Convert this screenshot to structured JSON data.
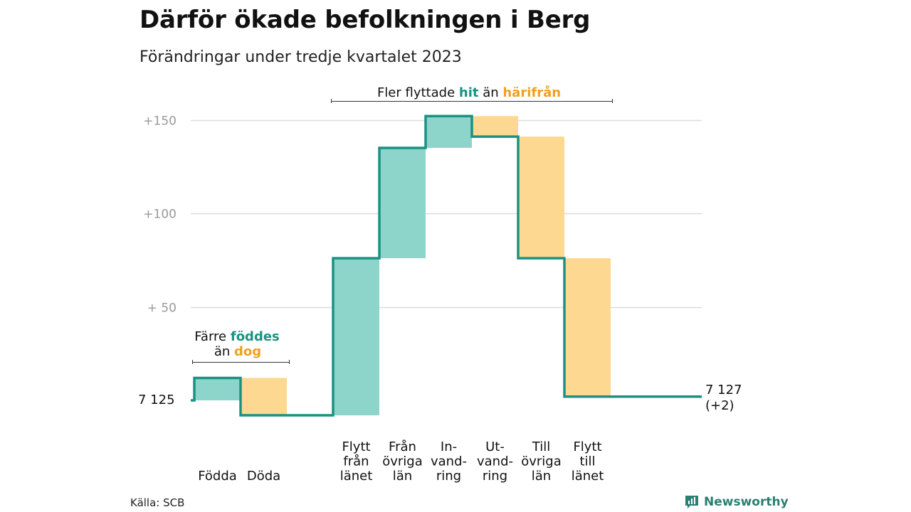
{
  "header": {
    "title": "Därför ökade befolkningen i Berg",
    "subtitle": "Förändringar under tredje kvartalet 2023"
  },
  "footer": {
    "source": "Källa: SCB",
    "brand": "Newsworthy"
  },
  "colors": {
    "increase": "#8dd5cb",
    "decrease": "#fcd891",
    "line": "#1a9282",
    "accent_teal": "#1a9282",
    "accent_orange": "#f0a020",
    "grid": "#dddddd"
  },
  "chart_data": {
    "type": "waterfall",
    "title": "Därför ökade befolkningen i Berg",
    "subtitle": "Förändringar under tredje kvartalet 2023",
    "start_value": 7125,
    "start_label": "7  125",
    "end_value": 7127,
    "end_label": "7 127",
    "end_change_label": "(+2)",
    "y_range_relative": [
      -8,
      155
    ],
    "y_ticks": [
      {
        "value": 50,
        "label": "+  50"
      },
      {
        "value": 100,
        "label": "+100"
      },
      {
        "value": 150,
        "label": "+150"
      }
    ],
    "grid": true,
    "steps": [
      {
        "label_lines": [
          "Födda"
        ],
        "change": 12,
        "kind": "increase"
      },
      {
        "label_lines": [
          "Döda"
        ],
        "change": -20,
        "kind": "decrease"
      },
      {
        "label_lines": [
          "Flytt",
          "från",
          "länet"
        ],
        "change": 84,
        "kind": "increase"
      },
      {
        "label_lines": [
          "Från",
          "övriga",
          "län"
        ],
        "change": 59,
        "kind": "increase"
      },
      {
        "label_lines": [
          "In-",
          "vand-",
          "ring"
        ],
        "change": 17,
        "kind": "increase"
      },
      {
        "label_lines": [
          "Ut-",
          "vand-",
          "ring"
        ],
        "change": -11,
        "kind": "decrease"
      },
      {
        "label_lines": [
          "Till",
          "övriga",
          "län"
        ],
        "change": -65,
        "kind": "decrease"
      },
      {
        "label_lines": [
          "Flytt",
          "till",
          "länet"
        ],
        "change": -74,
        "kind": "decrease"
      }
    ],
    "annotations": {
      "natural": {
        "prefix": "Färre ",
        "hit": "föddes",
        "middle": "än ",
        "away": "dog"
      },
      "migration": {
        "prefix": "Fler flyttade ",
        "hit": "hit",
        "middle": " än ",
        "away": "härifrån"
      }
    }
  }
}
